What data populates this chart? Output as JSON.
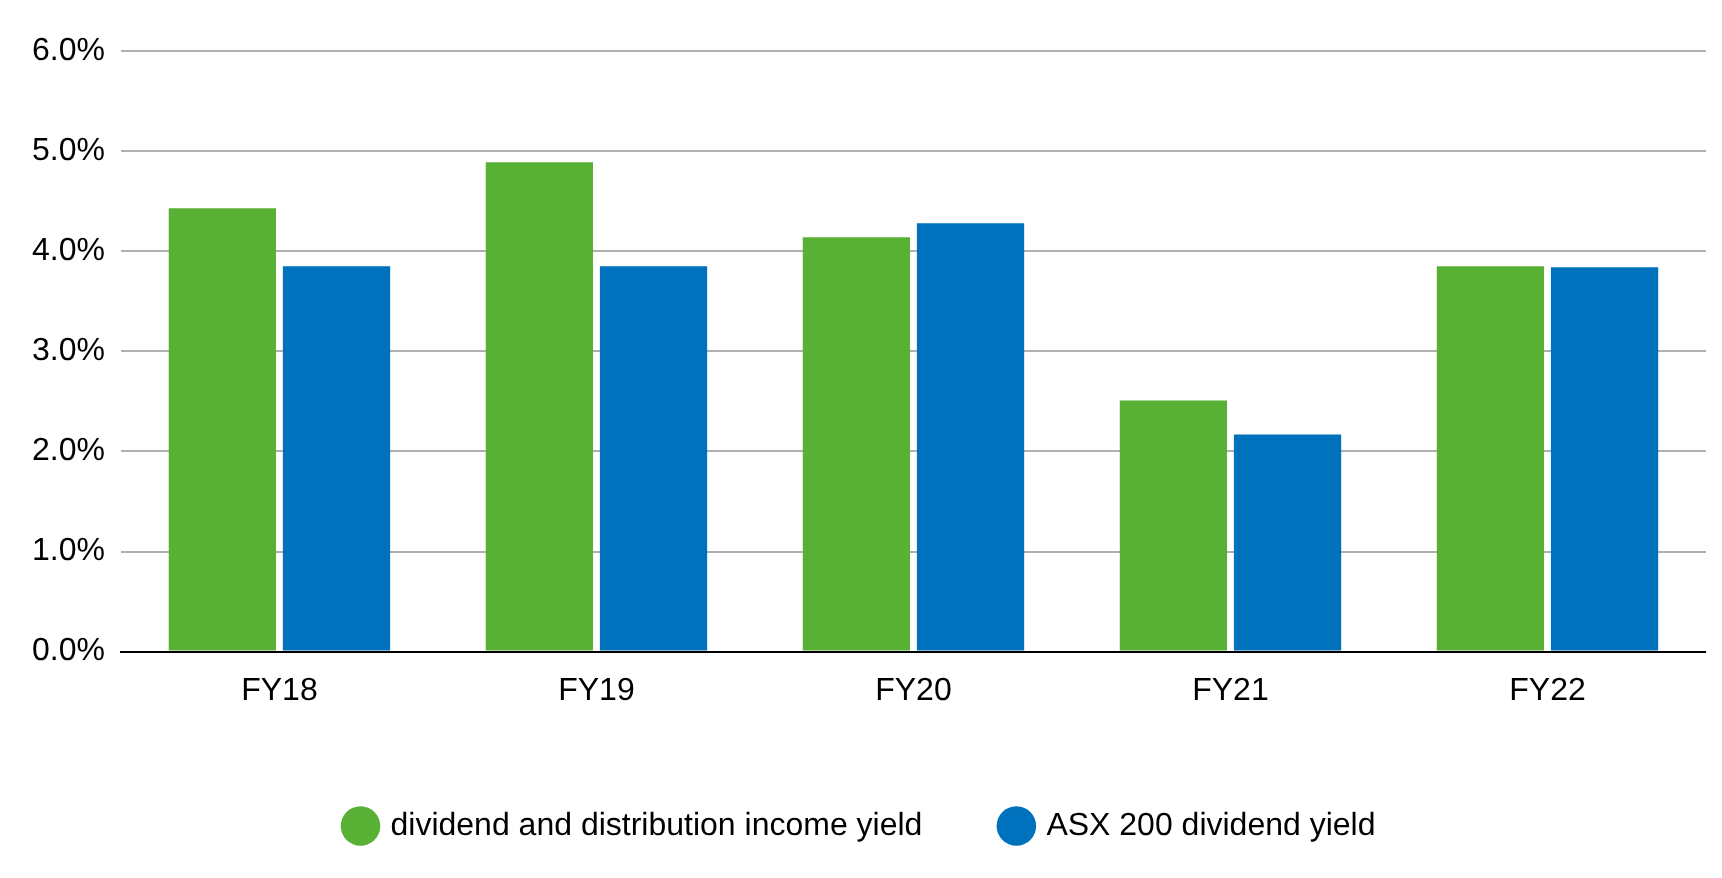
{
  "chart_data": {
    "type": "bar",
    "categories": [
      "FY18",
      "FY19",
      "FY20",
      "FY21",
      "FY22"
    ],
    "series": [
      {
        "name": "dividend and distribution income yield",
        "color": "#58b135",
        "values": [
          4.43,
          4.89,
          4.14,
          2.51,
          3.85
        ]
      },
      {
        "name": "ASX 200 dividend yield",
        "color": "#0071bc",
        "values": [
          3.85,
          3.85,
          4.28,
          2.17,
          3.84
        ]
      }
    ],
    "ylim": [
      0,
      6
    ],
    "yticks": [
      {
        "value": 0,
        "label": "0.0%"
      },
      {
        "value": 1,
        "label": "1.0%"
      },
      {
        "value": 2,
        "label": "2.0%"
      },
      {
        "value": 3,
        "label": "3.0%"
      },
      {
        "value": 4,
        "label": "4.0%"
      },
      {
        "value": 5,
        "label": "5.0%"
      },
      {
        "value": 6,
        "label": "6.0%"
      }
    ],
    "grid": "y",
    "legend": "bottom"
  }
}
